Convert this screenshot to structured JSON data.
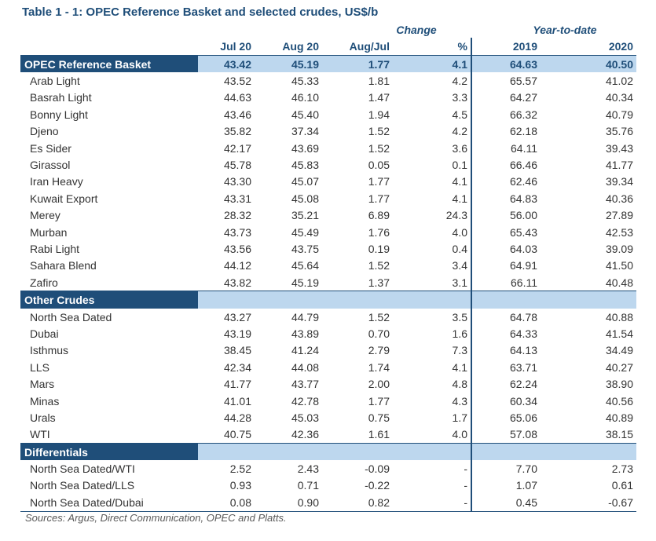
{
  "title": "Table 1 - 1: OPEC Reference Basket and selected crudes, US$/b",
  "groups": {
    "change": "Change",
    "ytd": "Year-to-date"
  },
  "columns": [
    "Jul 20",
    "Aug 20",
    "Aug/Jul",
    "%",
    "2019",
    "2020"
  ],
  "basket": {
    "name": "OPEC Reference Basket",
    "values": [
      "43.42",
      "45.19",
      "1.77",
      "4.1",
      "64.63",
      "40.50"
    ]
  },
  "opec_crudes": [
    {
      "name": "Arab Light",
      "values": [
        "43.52",
        "45.33",
        "1.81",
        "4.2",
        "65.57",
        "41.02"
      ]
    },
    {
      "name": "Basrah Light",
      "values": [
        "44.63",
        "46.10",
        "1.47",
        "3.3",
        "64.27",
        "40.34"
      ]
    },
    {
      "name": "Bonny Light",
      "values": [
        "43.46",
        "45.40",
        "1.94",
        "4.5",
        "66.32",
        "40.79"
      ]
    },
    {
      "name": "Djeno",
      "values": [
        "35.82",
        "37.34",
        "1.52",
        "4.2",
        "62.18",
        "35.76"
      ]
    },
    {
      "name": "Es Sider",
      "values": [
        "42.17",
        "43.69",
        "1.52",
        "3.6",
        "64.11",
        "39.43"
      ]
    },
    {
      "name": "Girassol",
      "values": [
        "45.78",
        "45.83",
        "0.05",
        "0.1",
        "66.46",
        "41.77"
      ]
    },
    {
      "name": "Iran Heavy",
      "values": [
        "43.30",
        "45.07",
        "1.77",
        "4.1",
        "62.46",
        "39.34"
      ]
    },
    {
      "name": "Kuwait Export",
      "values": [
        "43.31",
        "45.08",
        "1.77",
        "4.1",
        "64.83",
        "40.36"
      ]
    },
    {
      "name": "Merey",
      "values": [
        "28.32",
        "35.21",
        "6.89",
        "24.3",
        "56.00",
        "27.89"
      ]
    },
    {
      "name": "Murban",
      "values": [
        "43.73",
        "45.49",
        "1.76",
        "4.0",
        "65.43",
        "42.53"
      ]
    },
    {
      "name": "Rabi Light",
      "values": [
        "43.56",
        "43.75",
        "0.19",
        "0.4",
        "64.03",
        "39.09"
      ]
    },
    {
      "name": "Sahara Blend",
      "values": [
        "44.12",
        "45.64",
        "1.52",
        "3.4",
        "64.91",
        "41.50"
      ]
    },
    {
      "name": "Zafiro",
      "values": [
        "43.82",
        "45.19",
        "1.37",
        "3.1",
        "66.11",
        "40.48"
      ]
    }
  ],
  "other_section": "Other Crudes",
  "other_crudes": [
    {
      "name": "North Sea Dated",
      "values": [
        "43.27",
        "44.79",
        "1.52",
        "3.5",
        "64.78",
        "40.88"
      ]
    },
    {
      "name": "Dubai",
      "values": [
        "43.19",
        "43.89",
        "0.70",
        "1.6",
        "64.33",
        "41.54"
      ]
    },
    {
      "name": "Isthmus",
      "values": [
        "38.45",
        "41.24",
        "2.79",
        "7.3",
        "64.13",
        "34.49"
      ]
    },
    {
      "name": "LLS",
      "values": [
        "42.34",
        "44.08",
        "1.74",
        "4.1",
        "63.71",
        "40.27"
      ]
    },
    {
      "name": "Mars",
      "values": [
        "41.77",
        "43.77",
        "2.00",
        "4.8",
        "62.24",
        "38.90"
      ]
    },
    {
      "name": "Minas",
      "values": [
        "41.01",
        "42.78",
        "1.77",
        "4.3",
        "60.34",
        "40.56"
      ]
    },
    {
      "name": "Urals",
      "values": [
        "44.28",
        "45.03",
        "0.75",
        "1.7",
        "65.06",
        "40.89"
      ]
    },
    {
      "name": "WTI",
      "values": [
        "40.75",
        "42.36",
        "1.61",
        "4.0",
        "57.08",
        "38.15"
      ]
    }
  ],
  "diff_section": "Differentials",
  "differentials": [
    {
      "name": "North Sea Dated/WTI",
      "values": [
        "2.52",
        "2.43",
        "-0.09",
        "-",
        "7.70",
        "2.73"
      ]
    },
    {
      "name": "North Sea Dated/LLS",
      "values": [
        "0.93",
        "0.71",
        "-0.22",
        "-",
        "1.07",
        "0.61"
      ]
    },
    {
      "name": "North Sea Dated/Dubai",
      "values": [
        "0.08",
        "0.90",
        "0.82",
        "-",
        "0.45",
        "-0.67"
      ]
    }
  ],
  "source": "Sources:  Argus, Direct Communication, OPEC and Platts."
}
